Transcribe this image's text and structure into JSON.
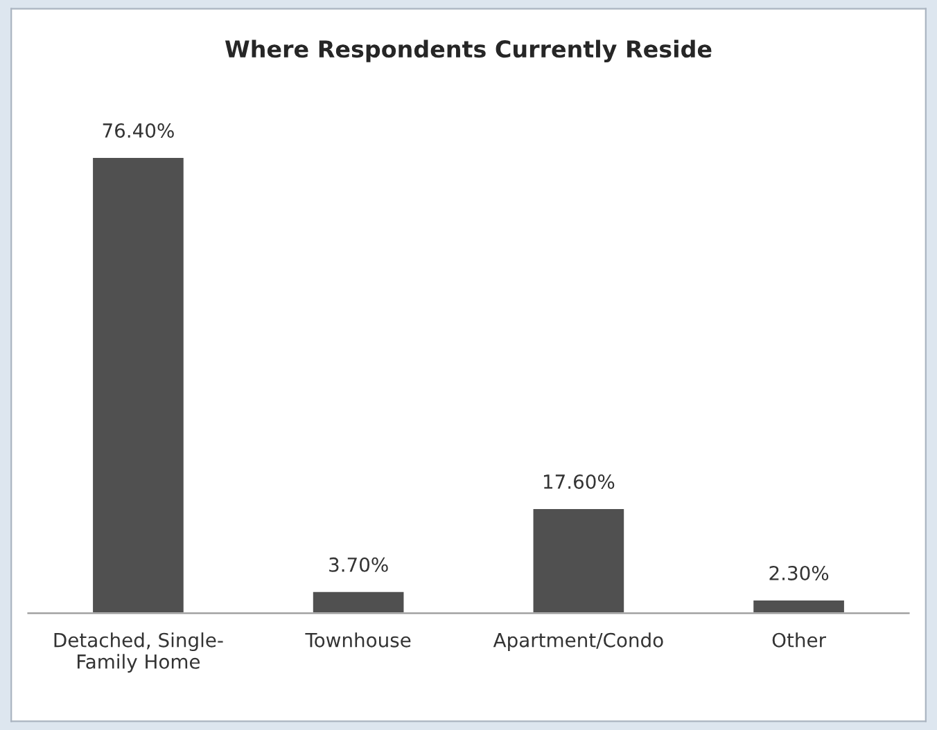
{
  "chart_data": {
    "type": "bar",
    "title": "Where Respondents Currently Reside",
    "categories": [
      "Detached, Single-\nFamily Home",
      "Townhouse",
      "Apartment/Condo",
      "Other"
    ],
    "values": [
      76.4,
      3.7,
      17.6,
      2.3
    ],
    "value_labels": [
      "76.40%",
      "3.70%",
      "17.60%",
      "2.30%"
    ],
    "color": "#505050",
    "grid": false,
    "legend": false
  }
}
